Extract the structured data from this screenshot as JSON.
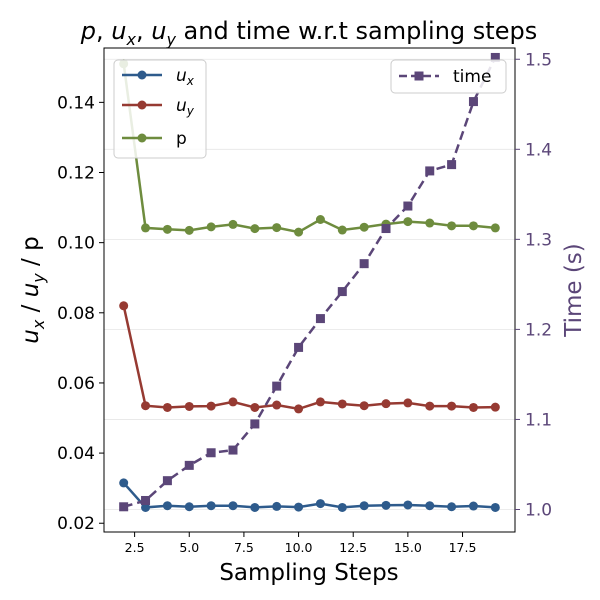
{
  "chart_data": {
    "type": "line",
    "title_parts": {
      "p": "p",
      "ux_base": "u",
      "ux_sub": "x",
      "sep1": ", ",
      "uy_base": "u",
      "uy_sub": "y",
      "tail": " and time w.r.t sampling steps"
    },
    "xlabel": "Sampling Steps",
    "ylabel_left": "u_x / u_y / p",
    "ylabel_left_parts": {
      "ux_base": "u",
      "ux_sub": "x",
      "sep": " / ",
      "uy_base": "u",
      "uy_sub": "y",
      "tail": " / p"
    },
    "ylabel_right": "Time (s)",
    "xlim": [
      1.1,
      19.9
    ],
    "ylim_left": [
      0.0175,
      0.1555
    ],
    "ylim_right": [
      0.975,
      1.5125
    ],
    "x_ticks": [
      2.5,
      5.0,
      7.5,
      10.0,
      12.5,
      15.0,
      17.5
    ],
    "x_tick_labels": [
      "2.5",
      "5.0",
      "7.5",
      "10.0",
      "12.5",
      "15.0",
      "17.5"
    ],
    "y_left_ticks": [
      0.02,
      0.04,
      0.06,
      0.08,
      0.1,
      0.12,
      0.14
    ],
    "y_left_tick_labels": [
      "0.02",
      "0.04",
      "0.06",
      "0.08",
      "0.10",
      "0.12",
      "0.14"
    ],
    "y_right_ticks": [
      1.0,
      1.1,
      1.2,
      1.3,
      1.4,
      1.5
    ],
    "y_right_tick_labels": [
      "1.0",
      "1.1",
      "1.2",
      "1.3",
      "1.4",
      "1.5"
    ],
    "x": [
      2,
      3,
      4,
      5,
      6,
      7,
      8,
      9,
      10,
      11,
      12,
      13,
      14,
      15,
      16,
      17,
      18,
      19
    ],
    "series": [
      {
        "name": "u_x",
        "axis": "left",
        "color": "#2e5b8c",
        "marker": "circle",
        "linestyle": "solid",
        "values": [
          0.0315,
          0.0245,
          0.025,
          0.0247,
          0.025,
          0.025,
          0.0245,
          0.0248,
          0.0246,
          0.0256,
          0.0245,
          0.025,
          0.0251,
          0.0252,
          0.025,
          0.0247,
          0.0249,
          0.0245
        ]
      },
      {
        "name": "u_y",
        "axis": "left",
        "color": "#963a32",
        "marker": "circle",
        "linestyle": "solid",
        "values": [
          0.082,
          0.0535,
          0.053,
          0.0533,
          0.0534,
          0.0546,
          0.053,
          0.0537,
          0.0526,
          0.0546,
          0.054,
          0.0535,
          0.0541,
          0.0543,
          0.0534,
          0.0534,
          0.053,
          0.0531
        ]
      },
      {
        "name": "p",
        "axis": "left",
        "color": "#6e8c3e",
        "marker": "circle",
        "linestyle": "solid",
        "values": [
          0.151,
          0.1042,
          0.1038,
          0.1035,
          0.1045,
          0.1052,
          0.104,
          0.1043,
          0.103,
          0.1066,
          0.1036,
          0.1044,
          0.1053,
          0.106,
          0.1056,
          0.1048,
          0.1048,
          0.1042
        ]
      },
      {
        "name": "time",
        "axis": "right",
        "color": "#5b4678",
        "marker": "square",
        "linestyle": "dashed",
        "values": [
          1.003,
          1.01,
          1.032,
          1.049,
          1.063,
          1.066,
          1.095,
          1.137,
          1.18,
          1.212,
          1.242,
          1.273,
          1.312,
          1.337,
          1.376,
          1.383,
          1.453,
          1.502
        ]
      }
    ],
    "legend_left": {
      "placement": "upper-left",
      "entries": [
        {
          "base": "u",
          "sub": "x"
        },
        {
          "base": "u",
          "sub": "y"
        },
        {
          "base": "p",
          "sub": ""
        }
      ]
    },
    "legend_right": {
      "placement": "upper-right",
      "entries": [
        {
          "label": "time"
        }
      ]
    },
    "grid": "horizontal-light",
    "colors": {
      "right_axis": "#5b4678",
      "text": "#000000",
      "grid": "#e6e6e6"
    }
  }
}
